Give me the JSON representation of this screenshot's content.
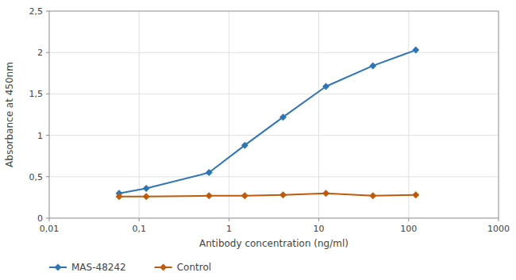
{
  "chart_data": {
    "type": "line",
    "xlabel": "Antibody concentration (ng/ml)",
    "ylabel": "Absorbance at 450nm",
    "x": [
      0.06,
      0.12,
      0.6,
      1.5,
      4.0,
      12.0,
      40.0,
      120.0
    ],
    "series": [
      {
        "name": "MAS-48242",
        "color": "#2E75B6",
        "values": [
          0.3,
          0.36,
          0.55,
          0.88,
          1.22,
          1.59,
          1.84,
          2.03
        ]
      },
      {
        "name": "Control",
        "color": "#BF5A0A",
        "values": [
          0.26,
          0.26,
          0.27,
          0.27,
          0.28,
          0.3,
          0.27,
          0.28
        ]
      }
    ],
    "log": "x",
    "xlim": [
      0.01,
      1000
    ],
    "xticks": [
      {
        "value": 0.01,
        "label": "0,01"
      },
      {
        "value": 0.1,
        "label": "0,1"
      },
      1,
      10,
      100,
      1000
    ],
    "ylim": [
      0,
      2.5
    ],
    "yticks": [
      0,
      {
        "value": 0.5,
        "label": "0,5"
      },
      1,
      {
        "value": 1.5,
        "label": "1,5"
      },
      2,
      {
        "value": 2.5,
        "label": "2,5"
      }
    ],
    "grid": true,
    "legend": "bottom",
    "marker": "diamond"
  }
}
